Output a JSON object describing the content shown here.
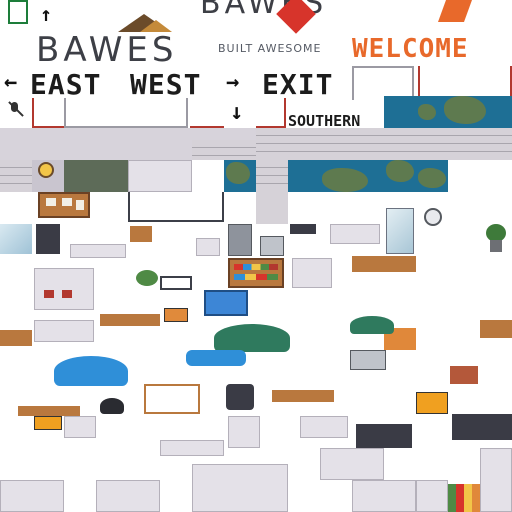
{
  "brand": {
    "name": "BAWES",
    "tagline": "BUILT AWESOME"
  },
  "signs": {
    "welcome": "WELCOME",
    "east": "EAST",
    "west": "WEST",
    "exit": "EXIT",
    "southern": "SOUTHERN"
  },
  "arrows": {
    "up": "↑",
    "left": "←",
    "right": "→",
    "down": "↓"
  },
  "colors": {
    "accent_orange": "#e8692b",
    "accent_red": "#d7342b",
    "water": "#1e6f95",
    "wall": "#d7d3db",
    "umbrella_blue": "#2f8fd8",
    "umbrella_green": "#2f7a5e"
  }
}
